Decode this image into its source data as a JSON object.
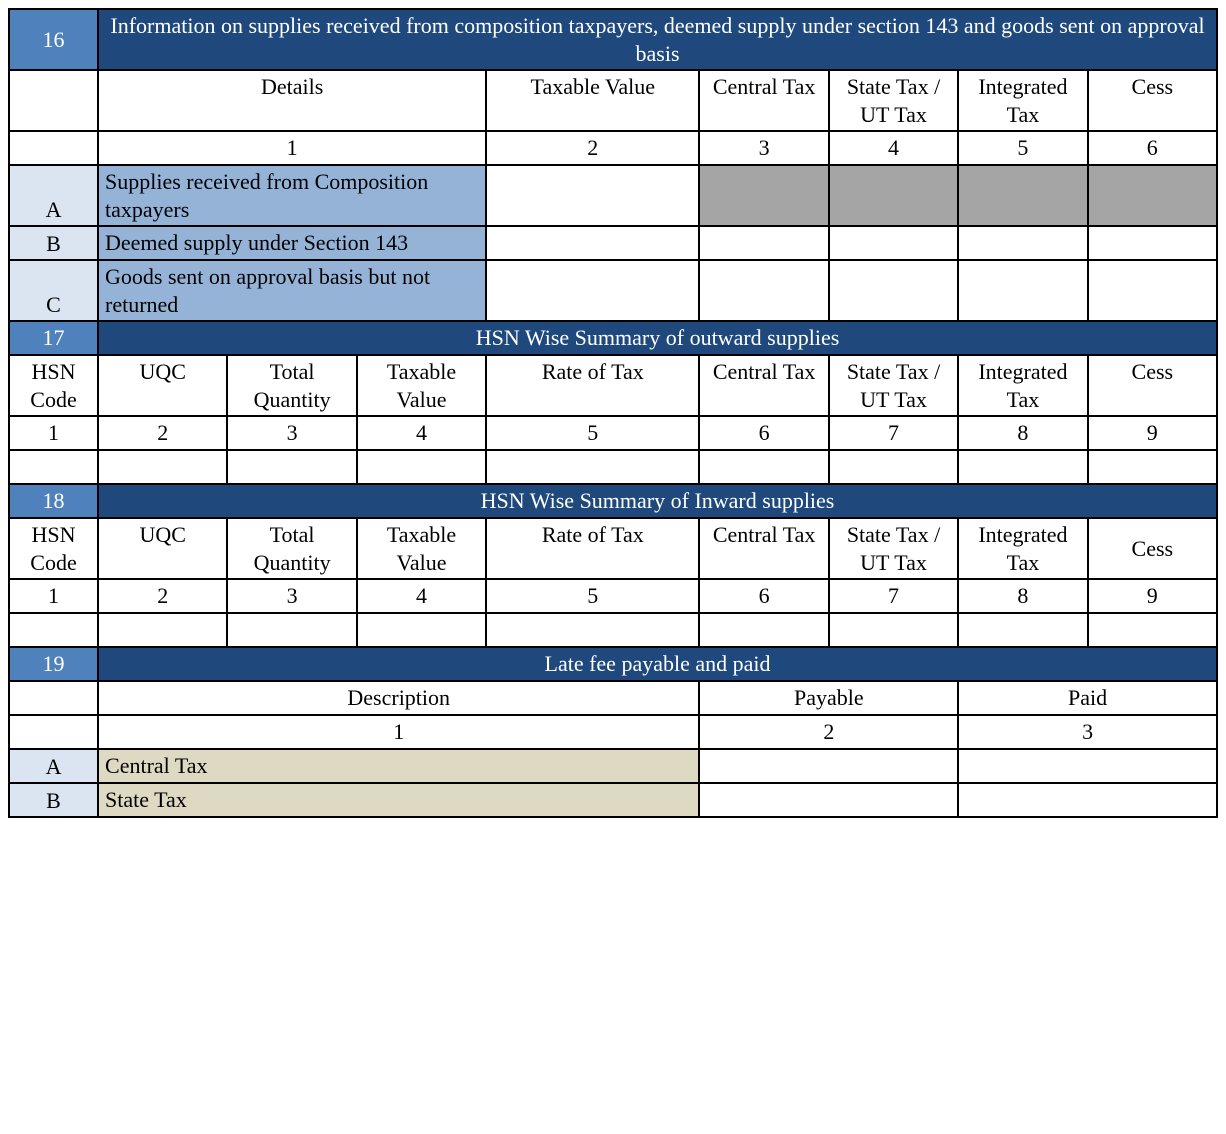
{
  "colors": {
    "section_num_bg": "#4f81bd",
    "section_title_bg": "#1f497d",
    "abc_bg": "#dbe5f1",
    "light_blue_bg": "#95b3d7",
    "grey_bg": "#a5a5a5",
    "beige_bg": "#ddd9c3",
    "border": "#000000",
    "text": "#000000",
    "title_text": "#ffffff",
    "font_family": "Times New Roman",
    "font_size_pt": 17
  },
  "s16": {
    "num": "16",
    "title": "Information on supplies received from composition taxpayers, deemed supply under section 143 and goods sent on approval basis",
    "cols": [
      "Details",
      "Taxable Value",
      "Central Tax",
      "State Tax / UT Tax",
      "Integrated Tax",
      "Cess"
    ],
    "nums": [
      "1",
      "2",
      "3",
      "4",
      "5",
      "6"
    ],
    "rows": {
      "A": "Supplies received from Composition taxpayers",
      "B": "Deemed supply  under Section 143",
      "C": "Goods sent on approval basis but not returned"
    }
  },
  "s17": {
    "num": "17",
    "title": "HSN Wise Summary of outward supplies",
    "cols": [
      "HSN Code",
      "UQC",
      "Total Quantity",
      "Taxable Value",
      "Rate of Tax",
      "Central Tax",
      "State Tax / UT Tax",
      "Integrated Tax",
      "Cess"
    ],
    "nums": [
      "1",
      "2",
      "3",
      "4",
      "5",
      "6",
      "7",
      "8",
      "9"
    ]
  },
  "s18": {
    "num": "18",
    "title": "HSN Wise Summary of Inward supplies",
    "cols": [
      "HSN Code",
      "UQC",
      "Total Quantity",
      "Taxable Value",
      "Rate of Tax",
      "Central Tax",
      "State Tax / UT Tax",
      "Integrated Tax",
      "Cess"
    ],
    "nums": [
      "1",
      "2",
      "3",
      "4",
      "5",
      "6",
      "7",
      "8",
      "9"
    ]
  },
  "s19": {
    "num": "19",
    "title": "Late fee payable and paid",
    "cols": [
      "Description",
      "Payable",
      "Paid"
    ],
    "nums": [
      "1",
      "2",
      "3"
    ],
    "rows": {
      "A": "Central Tax",
      "B": "State Tax"
    }
  },
  "abc": {
    "A": "A",
    "B": "B",
    "C": "C"
  }
}
